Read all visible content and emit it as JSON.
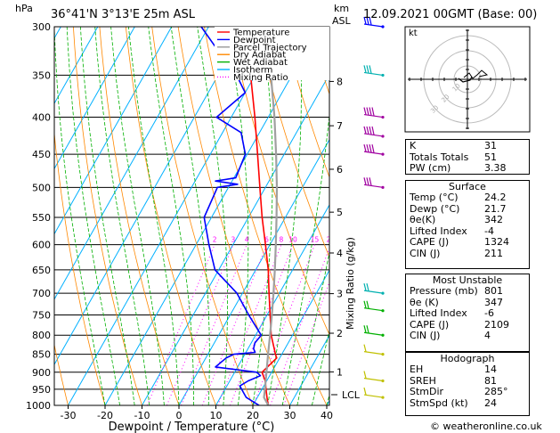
{
  "header": {
    "hpa_unit": "hPa",
    "location": "36°41'N  3°13'E  25m  ASL",
    "km_unit": "km",
    "asl_unit": "ASL",
    "datetime": "12.09.2021  00GMT  (Base: 00)"
  },
  "legend": {
    "items": [
      {
        "label": "Temperature",
        "color": "#ff0000",
        "style": "solid"
      },
      {
        "label": "Dewpoint",
        "color": "#0000ff",
        "style": "solid"
      },
      {
        "label": "Parcel Trajectory",
        "color": "#999999",
        "style": "solid"
      },
      {
        "label": "Dry Adiabat",
        "color": "#ff8800",
        "style": "solid"
      },
      {
        "label": "Wet Adiabat",
        "color": "#00b000",
        "style": "solid"
      },
      {
        "label": "Isotherm",
        "color": "#00b0ff",
        "style": "solid"
      },
      {
        "label": "Mixing Ratio",
        "color": "#ff00ff",
        "style": "dotted"
      }
    ]
  },
  "chart_data": {
    "type": "skew-t",
    "xlabel": "Dewpoint / Temperature (°C)",
    "x_ticks": [
      -30,
      -20,
      -10,
      0,
      10,
      20,
      30,
      40
    ],
    "y_ticks_hpa": [
      300,
      350,
      400,
      450,
      500,
      550,
      600,
      650,
      700,
      750,
      800,
      850,
      900,
      950,
      1000
    ],
    "y_scale": "log",
    "km_ticks": [
      {
        "km": "8",
        "p": 357
      },
      {
        "km": "7",
        "p": 411
      },
      {
        "km": "6",
        "p": 472
      },
      {
        "km": "5",
        "p": 541
      },
      {
        "km": "4",
        "p": 616
      },
      {
        "km": "3",
        "p": 701
      },
      {
        "km": "2",
        "p": 795
      },
      {
        "km": "1",
        "p": 899
      }
    ],
    "lcl": {
      "label": "LCL",
      "p": 975
    },
    "mixing_ratio_title": "Mixing Ratio (g/kg)",
    "mixing_ratio_labels": [
      "2",
      "3",
      "4",
      "6",
      "8",
      "10",
      "15",
      "20",
      "25"
    ],
    "mixing_ratio_values": [
      2,
      3,
      4,
      6,
      8,
      10,
      15,
      20,
      25
    ],
    "series": [
      {
        "name": "Temperature",
        "color": "#ff0000",
        "points": [
          [
            1000,
            24.2
          ],
          [
            975,
            22.6
          ],
          [
            950,
            21.1
          ],
          [
            925,
            19.6
          ],
          [
            900,
            17.4
          ],
          [
            875,
            18.5
          ],
          [
            860,
            19.2
          ],
          [
            850,
            18.3
          ],
          [
            800,
            14.2
          ],
          [
            750,
            10.8
          ],
          [
            700,
            7.2
          ],
          [
            650,
            3.4
          ],
          [
            600,
            -1.2
          ],
          [
            550,
            -6.3
          ],
          [
            500,
            -11.5
          ],
          [
            450,
            -17.2
          ],
          [
            400,
            -23.6
          ],
          [
            350,
            -31.2
          ],
          [
            300,
            -40.2
          ]
        ]
      },
      {
        "name": "Dewpoint",
        "color": "#0000ff",
        "points": [
          [
            1000,
            21.7
          ],
          [
            975,
            17.0
          ],
          [
            960,
            15.5
          ],
          [
            940,
            13.5
          ],
          [
            925,
            15.0
          ],
          [
            910,
            17.5
          ],
          [
            900,
            16.0
          ],
          [
            885,
            4.0
          ],
          [
            860,
            5.5
          ],
          [
            850,
            7.0
          ],
          [
            845,
            12.5
          ],
          [
            835,
            11.5
          ],
          [
            820,
            11.0
          ],
          [
            800,
            11.5
          ],
          [
            750,
            5.0
          ],
          [
            700,
            -1.5
          ],
          [
            650,
            -11.0
          ],
          [
            600,
            -16.5
          ],
          [
            550,
            -22.0
          ],
          [
            500,
            -23.0
          ],
          [
            495,
            -18.0
          ],
          [
            490,
            -24.5
          ],
          [
            485,
            -19.5
          ],
          [
            450,
            -20.5
          ],
          [
            420,
            -25.0
          ],
          [
            400,
            -34.0
          ],
          [
            370,
            -30.0
          ],
          [
            350,
            -35.0
          ],
          [
            320,
            -45.0
          ],
          [
            300,
            -52.0
          ]
        ]
      },
      {
        "name": "Parcel Trajectory",
        "color": "#a0a0a0",
        "points": [
          [
            1000,
            24.2
          ],
          [
            975,
            21.8
          ],
          [
            950,
            20.8
          ],
          [
            900,
            18.6
          ],
          [
            850,
            16.3
          ],
          [
            800,
            13.9
          ],
          [
            750,
            11.3
          ],
          [
            700,
            8.4
          ],
          [
            650,
            5.2
          ],
          [
            600,
            1.6
          ],
          [
            550,
            -2.4
          ],
          [
            500,
            -6.9
          ],
          [
            450,
            -12.2
          ],
          [
            400,
            -18.3
          ],
          [
            350,
            -25.7
          ],
          [
            300,
            -34.8
          ]
        ]
      }
    ]
  },
  "hodograph": {
    "unit_label": "kt",
    "ring_labels": [
      "10",
      "20",
      "30"
    ]
  },
  "indices": {
    "rows": [
      {
        "label": "K",
        "value": "31"
      },
      {
        "label": "Totals Totals",
        "value": "51"
      },
      {
        "label": "PW (cm)",
        "value": "3.38"
      }
    ]
  },
  "surface": {
    "title": "Surface",
    "rows": [
      {
        "label": "Temp (°C)",
        "value": "24.2"
      },
      {
        "label": "Dewp (°C)",
        "value": "21.7"
      },
      {
        "label": "θe(K)",
        "value": "342"
      },
      {
        "label": "Lifted Index",
        "value": "-4"
      },
      {
        "label": "CAPE (J)",
        "value": "1324"
      },
      {
        "label": "CIN (J)",
        "value": "211"
      }
    ]
  },
  "most_unstable": {
    "title": "Most Unstable",
    "rows": [
      {
        "label": "Pressure (mb)",
        "value": "801"
      },
      {
        "label": "θe (K)",
        "value": "347"
      },
      {
        "label": "Lifted Index",
        "value": "-6"
      },
      {
        "label": "CAPE (J)",
        "value": "2109"
      },
      {
        "label": "CIN (J)",
        "value": "4"
      }
    ]
  },
  "hodograph_table": {
    "title": "Hodograph",
    "rows": [
      {
        "label": "EH",
        "value": "14"
      },
      {
        "label": "SREH",
        "value": "81"
      },
      {
        "label": "StmDir",
        "value": "285°"
      },
      {
        "label": "StmSpd (kt)",
        "value": "24"
      }
    ]
  },
  "footer": {
    "copyright": "© weatheronline.co.uk"
  }
}
